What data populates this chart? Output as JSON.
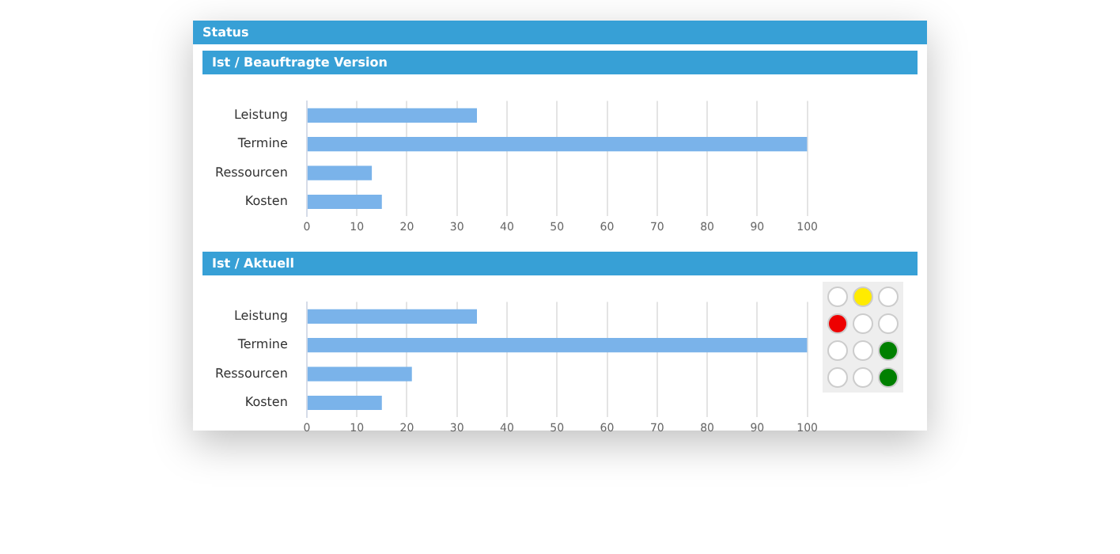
{
  "chart_data": [
    {
      "type": "other",
      "title": "Status"
    },
    {
      "type": "bar",
      "orientation": "horizontal",
      "title": "Ist / Beauftragte Version",
      "categories": [
        "Leistung",
        "Termine",
        "Ressourcen",
        "Kosten"
      ],
      "values": [
        34,
        100,
        13,
        15
      ],
      "color": "#7ab3ea",
      "xlim": [
        0,
        100
      ],
      "xticks": [
        0,
        10,
        20,
        30,
        40,
        50,
        60,
        70,
        80,
        90,
        100
      ],
      "grid": "x"
    },
    {
      "type": "bar",
      "orientation": "horizontal",
      "title": "Ist / Aktuell",
      "categories": [
        "Leistung",
        "Termine",
        "Ressourcen",
        "Kosten"
      ],
      "values": [
        34,
        100,
        21,
        15
      ],
      "color": "#7ab3ea",
      "xlim": [
        0,
        100
      ],
      "xticks": [
        0,
        10,
        20,
        30,
        40,
        50,
        60,
        70,
        80,
        90,
        100
      ],
      "grid": "x"
    }
  ]
}
